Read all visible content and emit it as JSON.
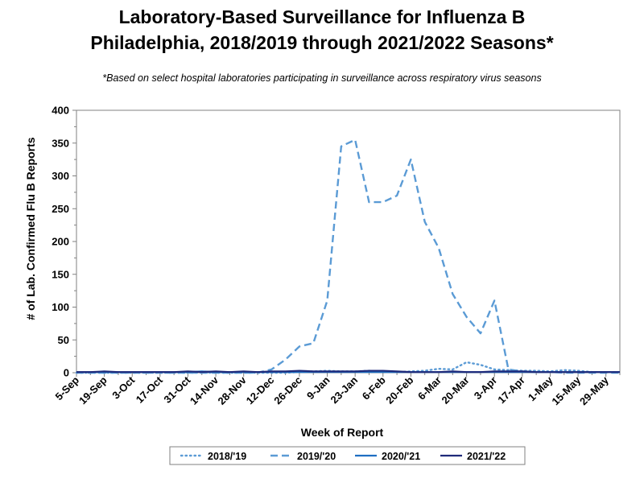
{
  "title_line1": "Laboratory-Based Surveillance for Influenza B",
  "title_line2": "Philadelphia, 2018/2019 through 2021/2022 Seasons*",
  "subtitle": "*Based on select hospital laboratories participating in surveillance across respiratory virus seasons",
  "chart_data": {
    "type": "line",
    "title": "Laboratory-Based Surveillance for Influenza B Philadelphia, 2018/2019 through 2021/2022 Seasons*",
    "subtitle": "*Based on select hospital laboratories participating in surveillance across respiratory virus seasons",
    "xlabel": "Week of Report",
    "ylabel": "# of Lab. Confirmed Flu B Reports",
    "ylim": [
      0,
      400
    ],
    "yticks": [
      0,
      50,
      100,
      150,
      200,
      250,
      300,
      350,
      400
    ],
    "x_tick_labels": [
      "5-Sep",
      "19-Sep",
      "3-Oct",
      "17-Oct",
      "31-Oct",
      "14-Nov",
      "28-Nov",
      "12-Dec",
      "26-Dec",
      "9-Jan",
      "23-Jan",
      "6-Feb",
      "20-Feb",
      "6-Mar",
      "20-Mar",
      "3-Apr",
      "17-Apr",
      "1-May",
      "15-May",
      "29-May"
    ],
    "x_weeks": [
      0,
      1,
      2,
      3,
      4,
      5,
      6,
      7,
      8,
      9,
      10,
      11,
      12,
      13,
      14,
      15,
      16,
      17,
      18,
      19,
      20,
      21,
      22,
      23,
      24,
      25,
      26,
      27,
      28,
      29,
      30,
      31,
      32,
      33,
      34,
      35,
      36,
      37,
      38,
      39
    ],
    "grid": false,
    "legend_position": "bottom",
    "series": [
      {
        "name": "2018/'19",
        "style": "dotted",
        "color": "#5b9bd5",
        "values": [
          0,
          0,
          0,
          0,
          0,
          0,
          0,
          0,
          0,
          0,
          0,
          0,
          0,
          0,
          0,
          0,
          1,
          2,
          3,
          2,
          2,
          3,
          2,
          1,
          2,
          3,
          6,
          5,
          16,
          12,
          5,
          4,
          3,
          3,
          2,
          4,
          3,
          1,
          1,
          1
        ]
      },
      {
        "name": "2019/'20",
        "style": "dashed",
        "color": "#5b9bd5",
        "values": [
          0,
          0,
          0,
          0,
          0,
          0,
          0,
          0,
          0,
          0,
          0,
          0,
          0,
          0,
          5,
          20,
          40,
          45,
          110,
          345,
          355,
          260,
          260,
          270,
          325,
          230,
          190,
          120,
          85,
          60,
          110,
          5,
          2,
          1,
          1,
          0,
          0,
          0,
          0,
          0
        ]
      },
      {
        "name": "2020/'21",
        "style": "solid",
        "color": "#1f6fc2",
        "values": [
          1,
          1,
          1,
          1,
          1,
          1,
          1,
          1,
          1,
          2,
          1,
          1,
          1,
          1,
          1,
          1,
          1,
          1,
          1,
          1,
          1,
          1,
          1,
          1,
          1,
          1,
          1,
          1,
          1,
          1,
          1,
          1,
          1,
          1,
          1,
          1,
          1,
          1,
          1,
          1
        ]
      },
      {
        "name": "2021/'22",
        "style": "solid",
        "color": "#1f2a7a",
        "values": [
          1,
          1,
          2,
          1,
          1,
          1,
          1,
          1,
          2,
          1,
          2,
          1,
          2,
          1,
          2,
          2,
          3,
          2,
          2,
          2,
          2,
          3,
          3,
          2,
          1,
          1,
          1,
          2,
          1,
          1,
          2,
          2,
          2,
          1,
          1,
          1,
          1,
          1,
          1,
          1
        ]
      }
    ]
  }
}
